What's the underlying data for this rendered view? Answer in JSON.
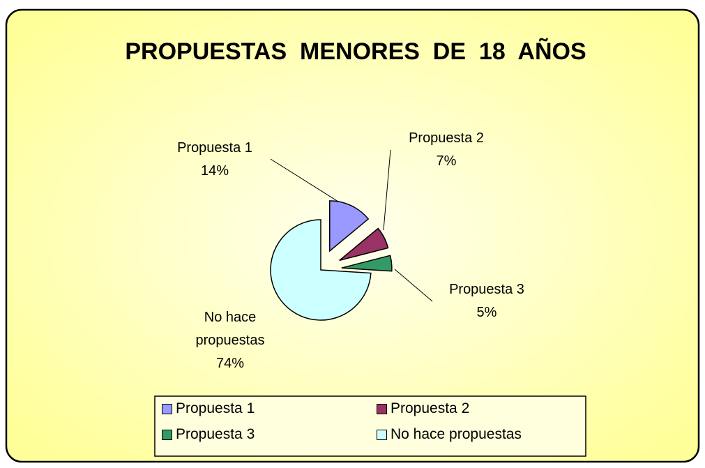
{
  "chart_data": {
    "type": "pie",
    "title": "PROPUESTAS  MENORES  DE  18  AÑOS",
    "categories": [
      "Propuesta 1",
      "Propuesta 2",
      "Propuesta 3",
      "No hace propuestas"
    ],
    "values": [
      14,
      7,
      5,
      74
    ],
    "value_labels": [
      "14%",
      "7%",
      "5%",
      "74%"
    ],
    "colors": [
      "#9999ff",
      "#993366",
      "#339966",
      "#ccffff"
    ],
    "legend": "bottom"
  }
}
